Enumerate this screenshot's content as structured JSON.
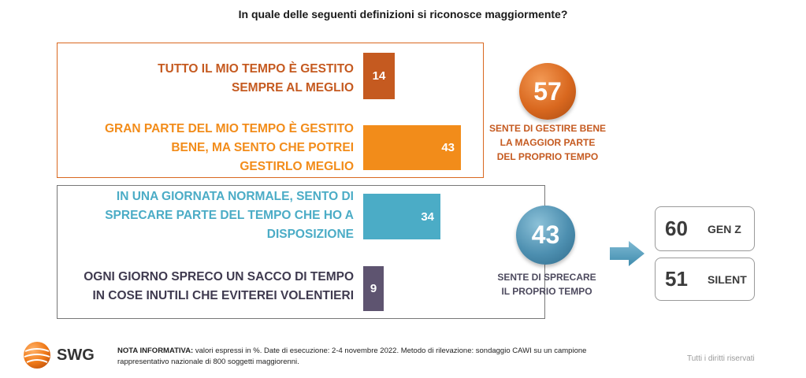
{
  "title": "In quale delle seguenti definizioni si riconosce maggiormente?",
  "chart_data": {
    "type": "bar",
    "orientation": "horizontal",
    "unit": "%",
    "categories": [
      "TUTTO IL MIO TEMPO È GESTITO SEMPRE AL MEGLIO",
      "GRAN PARTE DEL MIO TEMPO È GESTITO BENE,  MA SENTO CHE POTREI GESTIRLO MEGLIO",
      "IN UNA GIORNATA NORMALE, SENTO DI SPRECARE PARTE DEL TEMPO CHE HO A DISPOSIZIONE",
      "OGNI GIORNO SPRECO UN SACCO DI TEMPO IN COSE INUTILI CHE EVITEREI VOLENTIERI"
    ],
    "values": [
      14,
      43,
      34,
      9
    ],
    "colors": [
      "#c55a20",
      "#f28c1a",
      "#4bacc6",
      "#5e5470"
    ],
    "xlim": [
      0,
      43
    ],
    "groups": [
      {
        "value": 57,
        "caption": [
          "SENTE DI GESTIRE BENE",
          "LA MAGGIOR PARTE",
          "DEL PROPRIO TEMPO"
        ],
        "color": "#d9681f",
        "caption_color": "#c55a20"
      },
      {
        "value": 43,
        "caption": [
          "SENTE DI SPRECARE",
          "IL PROPRIO TEMPO"
        ],
        "color": "#4d8fb0",
        "caption_color": "#4d4a5e"
      }
    ],
    "breakdown": [
      {
        "value": "60",
        "label": "GEN Z"
      },
      {
        "value": "51",
        "label": "SILENT"
      }
    ]
  },
  "rows": [
    {
      "lines": [
        "TUTTO IL MIO TEMPO È GESTITO",
        "SEMPRE AL MEGLIO"
      ],
      "value": "14",
      "color": "#c55a20"
    },
    {
      "lines": [
        "GRAN PARTE DEL MIO TEMPO È GESTITO",
        "BENE,  MA SENTO CHE POTREI",
        "GESTIRLO MEGLIO"
      ],
      "value": "43",
      "color": "#f28c1a"
    },
    {
      "lines": [
        "IN UNA GIORNATA NORMALE, SENTO DI",
        "SPRECARE PARTE DEL TEMPO CHE HO A",
        "DISPOSIZIONE"
      ],
      "value": "34",
      "color": "#4bacc6"
    },
    {
      "lines": [
        "OGNI GIORNO SPRECO UN SACCO DI TEMPO",
        "IN COSE INUTILI CHE EVITEREI VOLENTIERI"
      ],
      "value": "9",
      "color": "#5e5470"
    }
  ],
  "bubbles": [
    {
      "value": "57",
      "caption": [
        "SENTE DI GESTIRE BENE",
        "LA MAGGIOR PARTE",
        "DEL PROPRIO TEMPO"
      ]
    },
    {
      "value": "43",
      "caption": [
        "SENTE DI SPRECARE",
        "IL PROPRIO TEMPO"
      ]
    }
  ],
  "gen_cards": [
    {
      "value": "60",
      "label": "GEN Z"
    },
    {
      "value": "51",
      "label": "SILENT"
    }
  ],
  "footer": {
    "logo_text": "SWG",
    "note_label": "NOTA INFORMATIVA:",
    "note_text": " valori espressi in %. Date di esecuzione: 2-4 novembre 2022. Metodo di rilevazione: sondaggio CAWI su un campione",
    "note_text2": "rappresentativo nazionale di 800 soggetti maggiorenni.",
    "rights": "Tutti i diritti riservati"
  },
  "icons": {
    "arrow": "arrow-right-icon",
    "logo": "globe-logo-icon"
  }
}
